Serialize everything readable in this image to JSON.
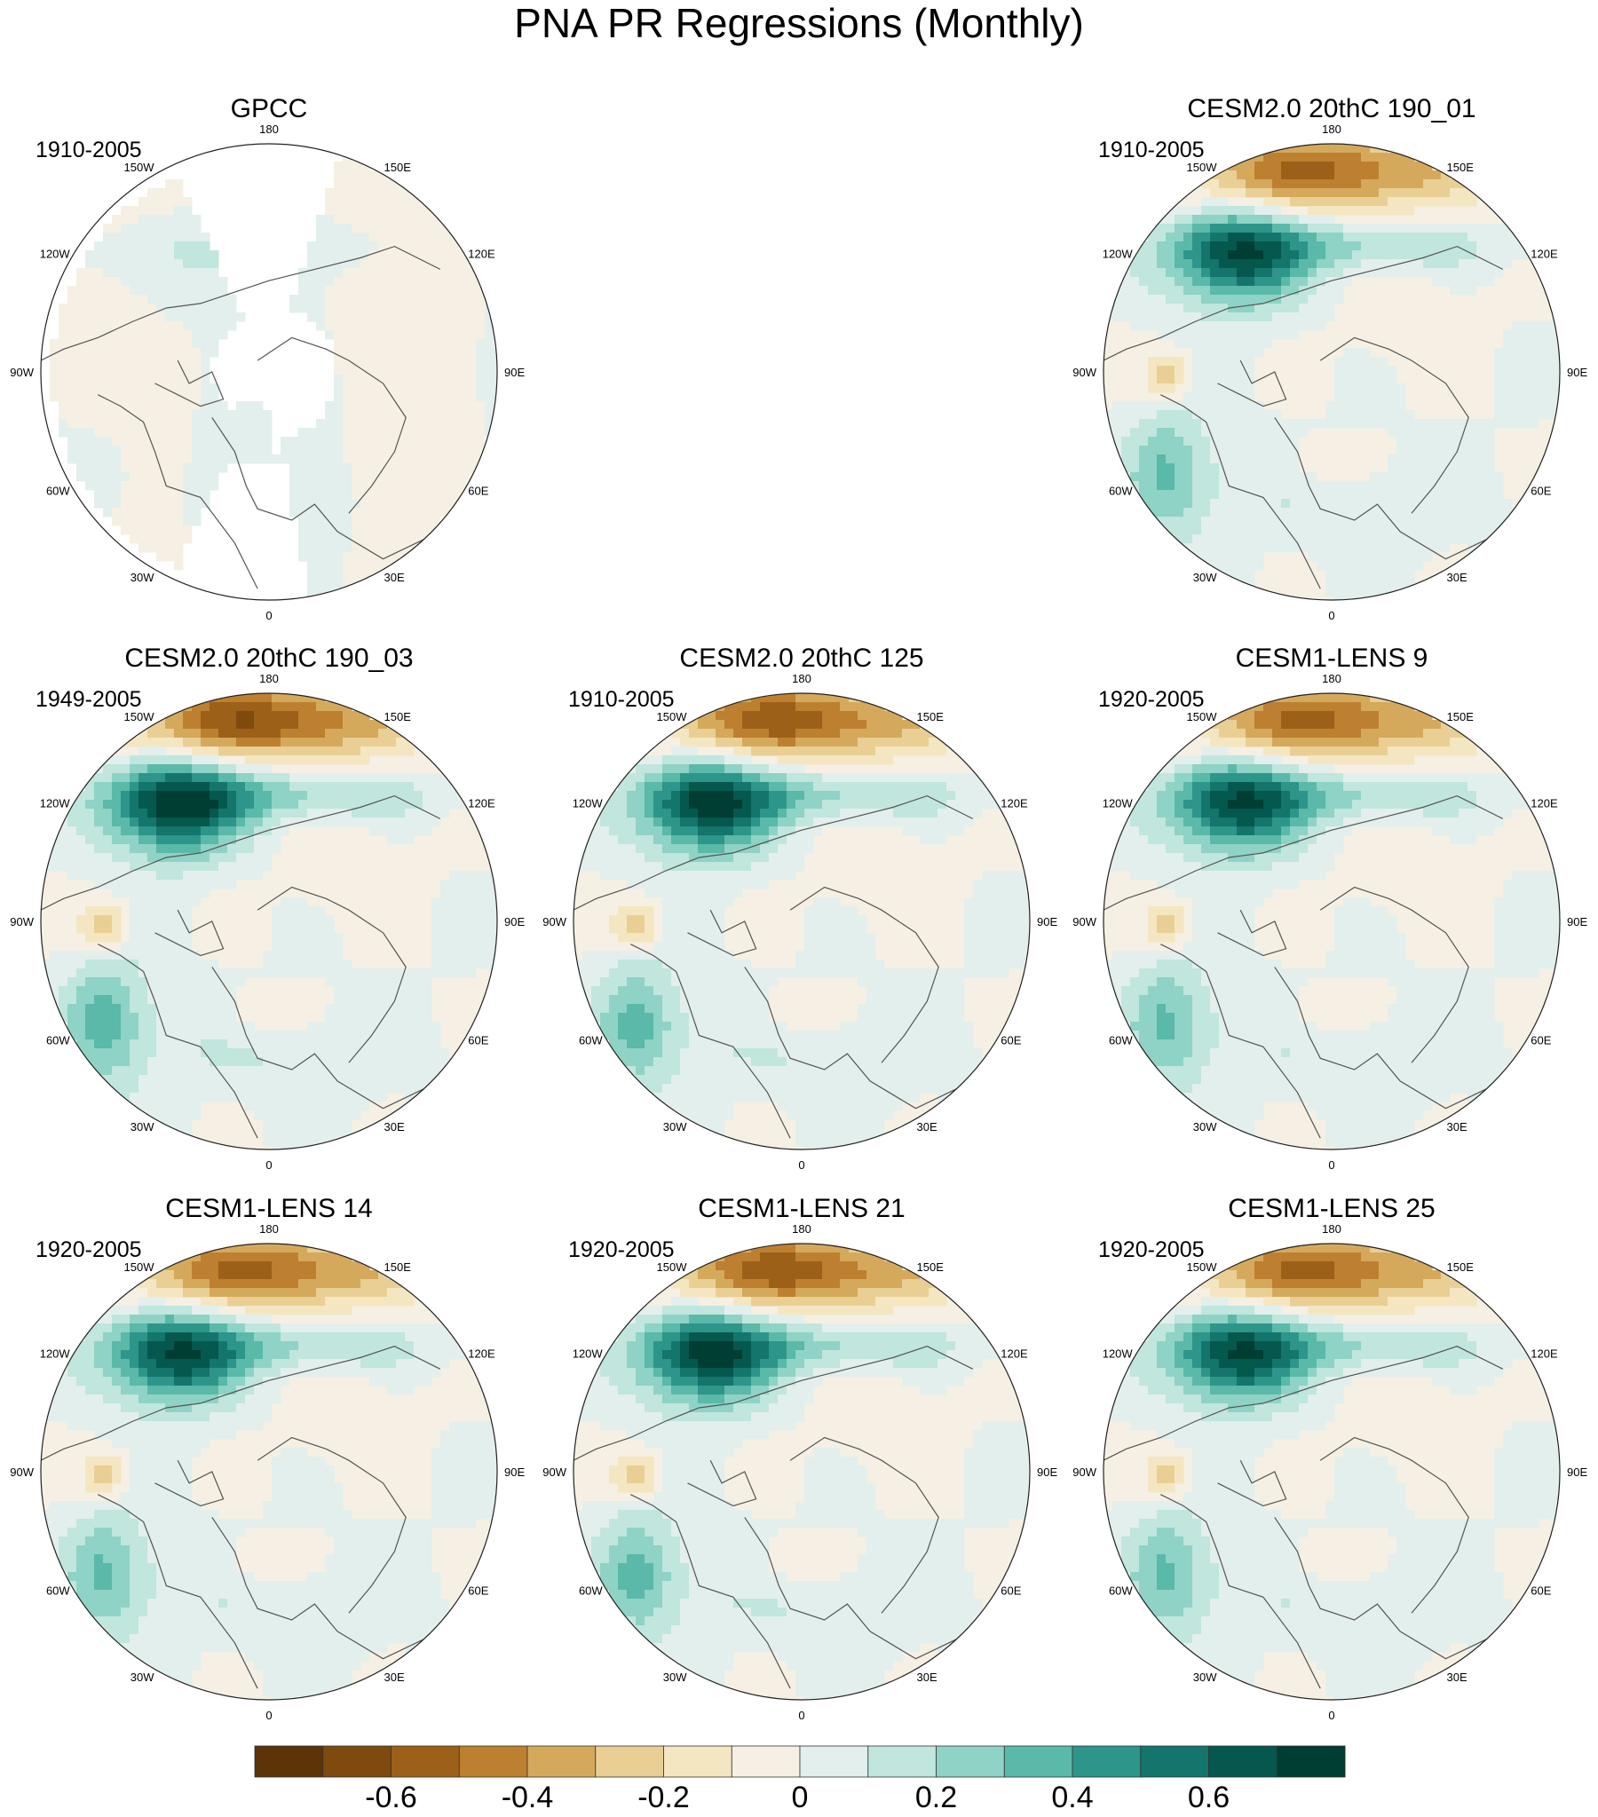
{
  "chart_data": {
    "type": "heatmap",
    "projection": "north polar stereographic",
    "title": "PNA PR Regressions (Monthly)",
    "variable": "precipitation regression on PNA index",
    "longitude_labels": [
      "180",
      "150E",
      "120E",
      "90E",
      "60E",
      "30E",
      "0",
      "30W",
      "60W",
      "90W",
      "120W",
      "150W"
    ],
    "panels": [
      {
        "name": "GPCC",
        "period": "1910-2005",
        "pacific_dipole_strength": 0.0,
        "land_only": true
      },
      {
        "name": "CESM2.0 20thC 190_01",
        "period": "1910-2005",
        "pacific_dipole_strength": 0.85,
        "land_only": false
      },
      {
        "name": "CESM2.0 20thC 190_03",
        "period": "1949-2005",
        "pacific_dipole_strength": 0.95,
        "land_only": false
      },
      {
        "name": "CESM2.0 20thC 125",
        "period": "1910-2005",
        "pacific_dipole_strength": 0.9,
        "land_only": false
      },
      {
        "name": "CESM1-LENS 9",
        "period": "1920-2005",
        "pacific_dipole_strength": 0.85,
        "land_only": false
      },
      {
        "name": "CESM1-LENS 14",
        "period": "1920-2005",
        "pacific_dipole_strength": 0.85,
        "land_only": false
      },
      {
        "name": "CESM1-LENS 21",
        "period": "1920-2005",
        "pacific_dipole_strength": 0.9,
        "land_only": false
      },
      {
        "name": "CESM1-LENS 25",
        "period": "1920-2005",
        "pacific_dipole_strength": 0.85,
        "land_only": false
      }
    ],
    "colorbar": {
      "levels": [
        -0.7,
        -0.6,
        -0.5,
        -0.4,
        -0.3,
        -0.2,
        -0.1,
        0,
        0.1,
        0.2,
        0.3,
        0.4,
        0.5,
        0.6,
        0.7
      ],
      "colors": [
        "#5c3407",
        "#7e4a0e",
        "#9c6018",
        "#bd8030",
        "#d5a95c",
        "#e9cf94",
        "#f5e6c2",
        "#f5f0e3",
        "#e3efec",
        "#c0e6de",
        "#8ed3c5",
        "#5ab9a9",
        "#2d958a",
        "#13756b",
        "#05584e",
        "#003d33"
      ],
      "tick_labels": [
        "-0.6",
        "-0.4",
        "-0.2",
        "0",
        "0.2",
        "0.4",
        "0.6"
      ],
      "tick_values": [
        -0.6,
        -0.4,
        -0.2,
        0,
        0.2,
        0.4,
        0.6
      ]
    }
  }
}
